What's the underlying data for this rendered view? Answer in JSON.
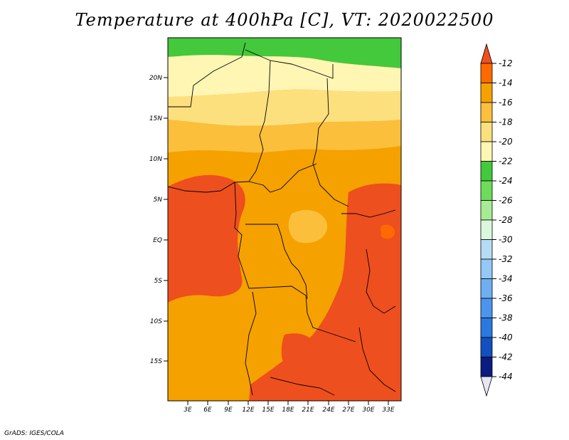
{
  "map": {
    "title": "Temperature at 400hPa [C], VT: 2020022500",
    "lon_labels": [
      "3E",
      "6E",
      "9E",
      "12E",
      "15E",
      "18E",
      "21E",
      "24E",
      "27E",
      "30E",
      "33E"
    ],
    "lat_labels": [
      "20N",
      "15N",
      "10N",
      "5N",
      "EQ",
      "5S",
      "10S",
      "15S"
    ],
    "credit": "GrADS: IGES/COLA",
    "colorbar": {
      "labels": [
        "-12",
        "-14",
        "-16",
        "-18",
        "-20",
        "-22",
        "-24",
        "-26",
        "-28",
        "-30",
        "-32",
        "-34",
        "-36",
        "-38",
        "-40",
        "-42",
        "-44"
      ],
      "colors": [
        "#ee4f1e",
        "#ff6a00",
        "#f5a100",
        "#fbbf3c",
        "#fde07e",
        "#fff6b4",
        "#44c83c",
        "#6ddc5a",
        "#a7ec94",
        "#dcf8dc",
        "#b6dcf5",
        "#94c8f5",
        "#6eaff2",
        "#4c94ee",
        "#2a78e0",
        "#1250c0",
        "#0a1c80"
      ]
    }
  }
}
